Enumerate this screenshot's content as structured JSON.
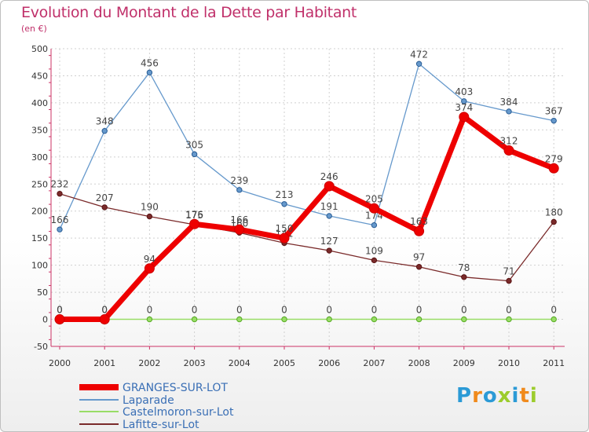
{
  "chart_data": {
    "type": "line",
    "title": "Evolution du Montant de la Dette par Habitant",
    "subtitle": "(en €)",
    "x": [
      "2000",
      "2001",
      "2002",
      "2003",
      "2004",
      "2005",
      "2006",
      "2007",
      "2008",
      "2009",
      "2010",
      "2011"
    ],
    "ylim": [
      -50,
      500
    ],
    "yticks": [
      -50,
      0,
      50,
      100,
      150,
      200,
      250,
      300,
      350,
      400,
      450,
      500
    ],
    "grid": true,
    "legend_position": "bottom-left",
    "series": [
      {
        "name": "Laparade",
        "color": "#6699cc",
        "values": [
          166,
          348,
          456,
          305,
          239,
          213,
          191,
          174,
          472,
          403,
          384,
          367
        ]
      },
      {
        "name": "Lafitte-sur-Lot",
        "color": "#7a2a2a",
        "values": [
          232,
          207,
          190,
          175,
          160,
          141,
          127,
          109,
          97,
          78,
          71,
          180
        ]
      },
      {
        "name": "Castelmoron-sur-Lot",
        "color": "#99dd66",
        "values": [
          0,
          0,
          0,
          0,
          0,
          0,
          0,
          0,
          0,
          0,
          0,
          0
        ]
      },
      {
        "name": "GRANGES-SUR-LOT",
        "color": "#ee0000",
        "values": [
          0,
          0,
          94,
          176,
          166,
          150,
          246,
          205,
          163,
          374,
          312,
          279
        ]
      }
    ],
    "legend_order": [
      "GRANGES-SUR-LOT",
      "Laparade",
      "Castelmoron-sur-Lot",
      "Lafitte-sur-Lot"
    ]
  },
  "logo": {
    "letters": [
      "P",
      "r",
      "o",
      "x",
      "i",
      "t",
      "i"
    ],
    "colors": [
      "#2b9ad6",
      "#f08a1c",
      "#2b9ad6",
      "#9ccc2c",
      "#2b9ad6",
      "#f08a1c",
      "#9ccc2c"
    ]
  }
}
